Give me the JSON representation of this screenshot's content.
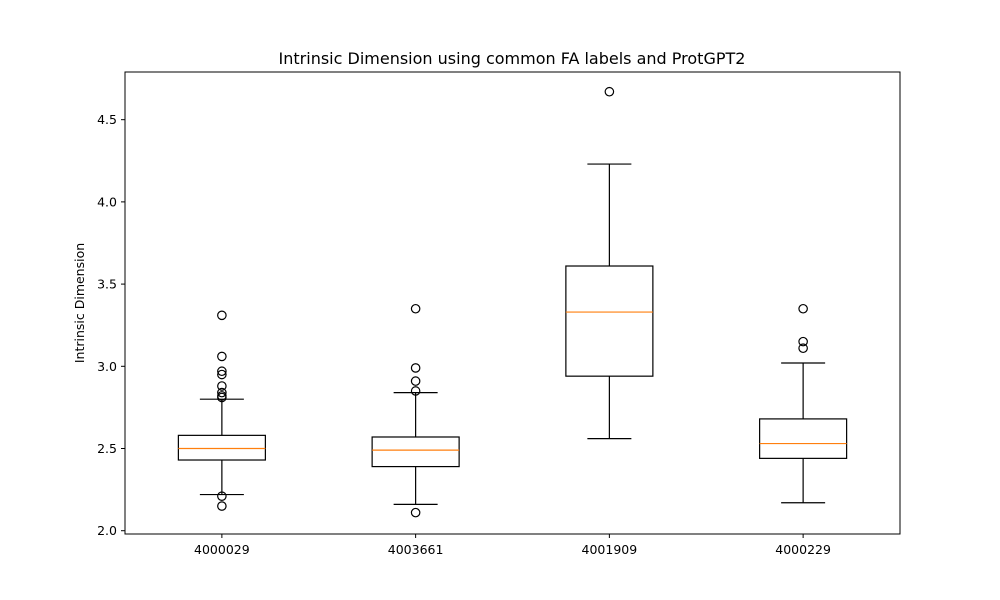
{
  "chart_data": {
    "type": "box",
    "title": "Intrinsic Dimension using common FA labels and ProtGPT2",
    "xlabel": "",
    "ylabel": "Intrinsic Dimension",
    "ylim": [
      1.98,
      4.79
    ],
    "yticks": [
      "2.0",
      "2.5",
      "3.0",
      "3.5",
      "4.0",
      "4.5"
    ],
    "categories": [
      "4000029",
      "4003661",
      "4001909",
      "4000229"
    ],
    "boxes": [
      {
        "label": "4000029",
        "whisker_low": 2.22,
        "q1": 2.43,
        "median": 2.5,
        "q3": 2.58,
        "whisker_high": 2.8,
        "outliers": [
          2.15,
          2.21,
          2.81,
          2.82,
          2.84,
          2.88,
          2.95,
          2.97,
          3.06,
          3.31
        ]
      },
      {
        "label": "4003661",
        "whisker_low": 2.16,
        "q1": 2.39,
        "median": 2.49,
        "q3": 2.57,
        "whisker_high": 2.84,
        "outliers": [
          2.11,
          2.85,
          2.91,
          2.99,
          3.35
        ]
      },
      {
        "label": "4001909",
        "whisker_low": 2.56,
        "q1": 2.94,
        "median": 3.33,
        "q3": 3.61,
        "whisker_high": 4.23,
        "outliers": [
          4.67
        ]
      },
      {
        "label": "4000229",
        "whisker_low": 2.17,
        "q1": 2.44,
        "median": 2.53,
        "q3": 2.68,
        "whisker_high": 3.02,
        "outliers": [
          3.11,
          3.15,
          3.35
        ]
      }
    ],
    "colors": {
      "box": "#000000",
      "median": "#ff7f0e",
      "background": "#ffffff"
    },
    "grid": false,
    "legend": "none"
  }
}
